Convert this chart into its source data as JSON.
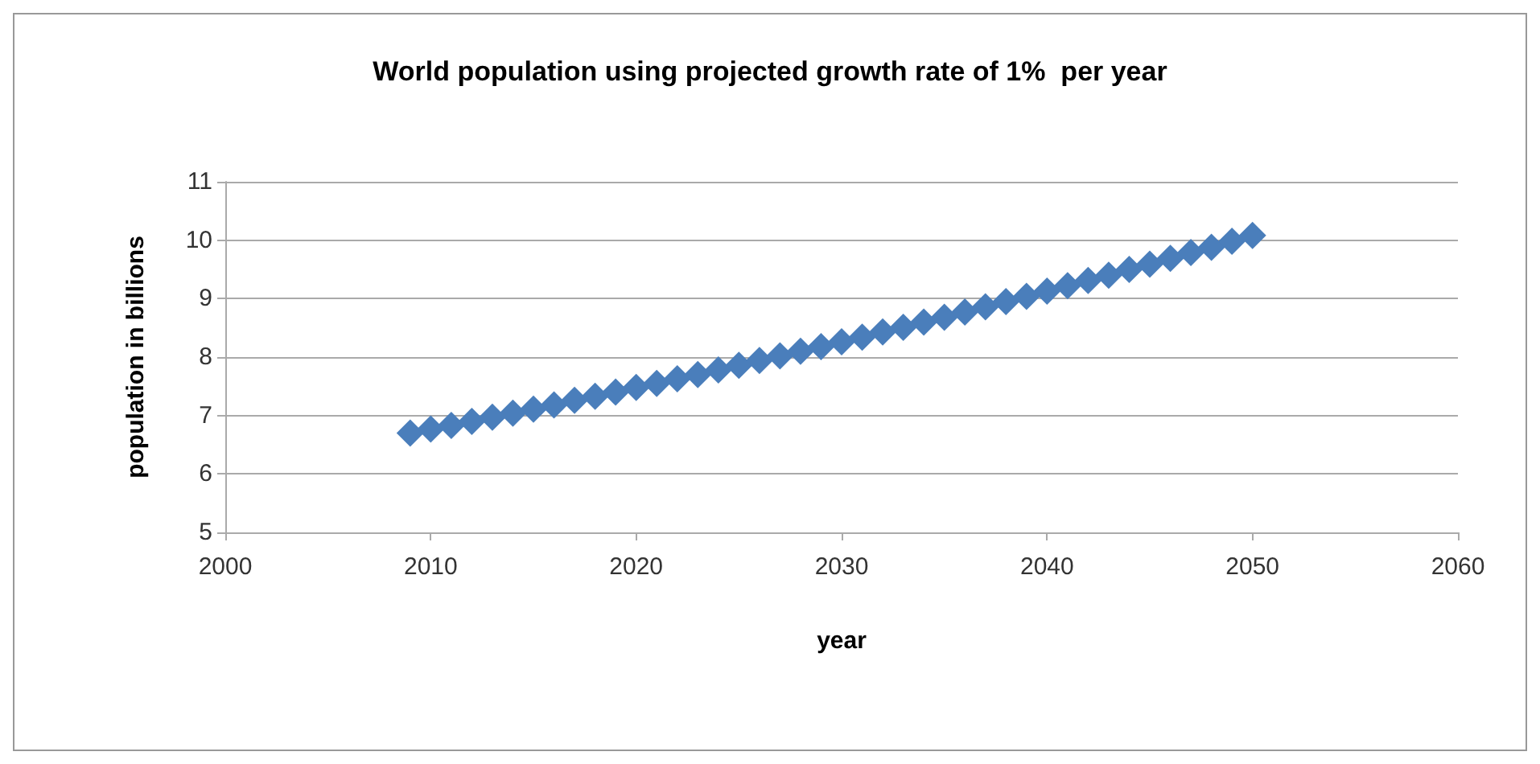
{
  "chart_data": {
    "type": "scatter",
    "title": "World population using projected growth rate of 1%  per year",
    "xlabel": "year",
    "ylabel": "population in billions",
    "x": [
      2009,
      2010,
      2011,
      2012,
      2013,
      2014,
      2015,
      2016,
      2017,
      2018,
      2019,
      2020,
      2021,
      2022,
      2023,
      2024,
      2025,
      2026,
      2027,
      2028,
      2029,
      2030,
      2031,
      2032,
      2033,
      2034,
      2035,
      2036,
      2037,
      2038,
      2039,
      2040,
      2041,
      2042,
      2043,
      2044,
      2045,
      2046,
      2047,
      2048,
      2049,
      2050
    ],
    "series": [
      {
        "color": "#4a7ebb",
        "values": [
          6.7,
          6.77,
          6.83,
          6.9,
          6.97,
          7.04,
          7.11,
          7.18,
          7.26,
          7.33,
          7.4,
          7.48,
          7.55,
          7.63,
          7.7,
          7.78,
          7.86,
          7.94,
          8.02,
          8.1,
          8.18,
          8.26,
          8.34,
          8.43,
          8.51,
          8.6,
          8.68,
          8.77,
          8.86,
          8.95,
          9.04,
          9.13,
          9.22,
          9.31,
          9.4,
          9.5,
          9.59,
          9.69,
          9.79,
          9.88,
          9.98,
          10.08
        ]
      }
    ],
    "xlim": [
      2000,
      2060
    ],
    "xticks": [
      2000,
      2010,
      2020,
      2030,
      2040,
      2050,
      2060
    ],
    "ylim": [
      5,
      11
    ],
    "yticks": [
      5,
      6,
      7,
      8,
      9,
      10,
      11
    ],
    "grid": "y",
    "marker": "diamond"
  }
}
